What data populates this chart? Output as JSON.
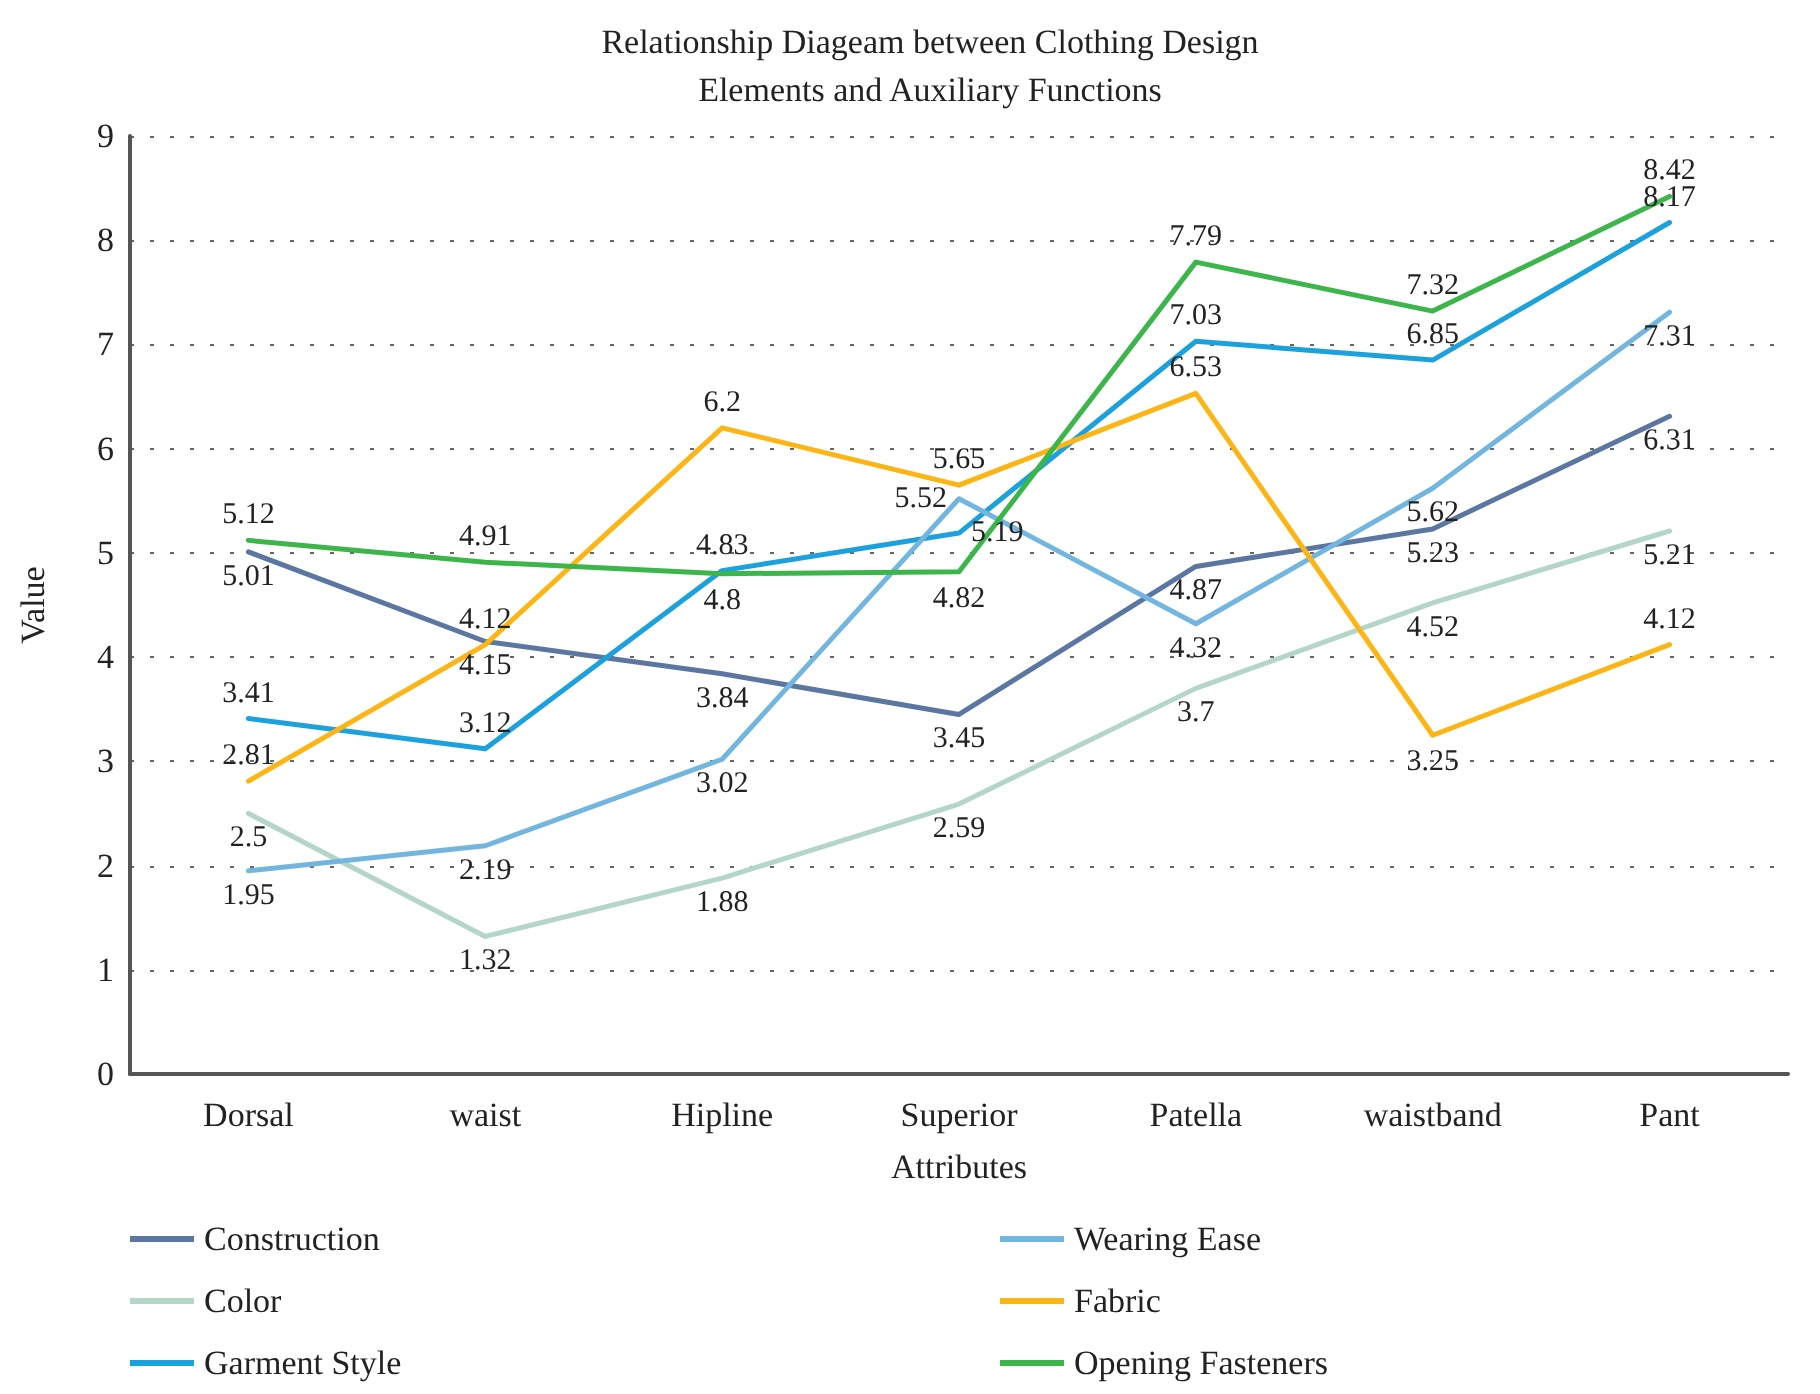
{
  "chart_data": {
    "type": "line",
    "title": "Relationship Diageam between Clothing Design\nElements and Auxiliary Functions",
    "xlabel": "Attributes",
    "ylabel": "Value",
    "categories": [
      "Dorsal",
      "waist",
      "Hipline",
      "Superior",
      "Patella",
      "waistband",
      "Pant"
    ],
    "series": [
      {
        "name": "Construction",
        "color": "#5b76a0",
        "values": [
          5.01,
          4.15,
          3.84,
          3.45,
          4.87,
          5.23,
          6.31
        ]
      },
      {
        "name": "Color",
        "color": "#b4d6c9",
        "values": [
          2.5,
          1.32,
          1.88,
          2.59,
          3.7,
          4.52,
          5.21
        ]
      },
      {
        "name": "Garment Style",
        "color": "#1ba1db",
        "values": [
          3.41,
          3.12,
          4.83,
          5.19,
          7.03,
          6.85,
          8.17
        ]
      },
      {
        "name": "Wearing Ease",
        "color": "#72b6e0",
        "values": [
          1.95,
          2.19,
          3.02,
          5.52,
          4.32,
          5.62,
          7.31
        ]
      },
      {
        "name": "Fabric",
        "color": "#fdb515",
        "values": [
          2.81,
          4.12,
          6.2,
          5.65,
          6.53,
          3.25,
          4.12
        ]
      },
      {
        "name": "Opening Fasteners",
        "color": "#3cb54a",
        "values": [
          5.12,
          4.91,
          4.8,
          4.82,
          7.79,
          7.32,
          8.42
        ]
      }
    ],
    "ylim": [
      0,
      9
    ],
    "yticks": [
      0,
      1,
      2,
      3,
      4,
      5,
      6,
      7,
      8,
      9
    ],
    "grid": "y",
    "legend": "bottom",
    "marker": "none",
    "line_style": "solid",
    "data_labels": true
  }
}
